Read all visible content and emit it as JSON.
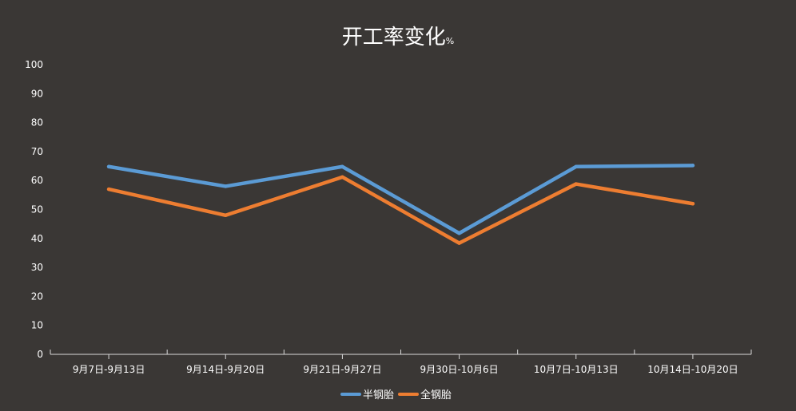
{
  "chart_data": {
    "type": "line",
    "title": "开工率变化",
    "title_unit": "%",
    "categories": [
      "9月7日-9月13日",
      "9月14日-9月20日",
      "9月21日-9月27日",
      "9月30日-10月6日",
      "10月7日-10月13日",
      "10月14日-10月20日"
    ],
    "series": [
      {
        "name": "半钢胎",
        "color": "#5b9bd5",
        "values": [
          64.8,
          58.0,
          64.8,
          41.8,
          64.8,
          65.2
        ]
      },
      {
        "name": "全钢胎",
        "color": "#ed7d31",
        "values": [
          57.0,
          48.0,
          61.2,
          38.4,
          58.8,
          52.0
        ]
      }
    ],
    "ylim": [
      0,
      100
    ],
    "yticks": [
      "0",
      "10",
      "20",
      "30",
      "40",
      "50",
      "60",
      "70",
      "80",
      "90",
      "100"
    ],
    "grid": false,
    "legend": "bottom"
  }
}
